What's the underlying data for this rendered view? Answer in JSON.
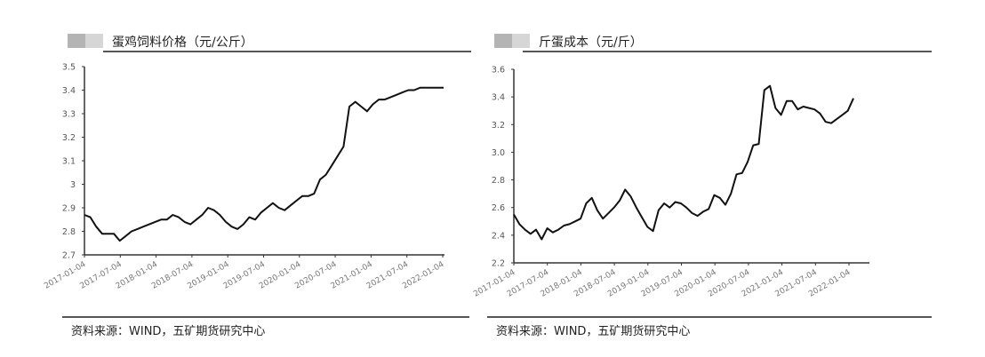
{
  "chart_data": [
    {
      "type": "line",
      "title": "蛋鸡饲料价格（元/公斤）",
      "xlabel": "",
      "ylabel": "",
      "ylim": [
        2.7,
        3.5
      ],
      "yticks": [
        "2.7",
        "2.8",
        "2.9",
        "3",
        "3.1",
        "3.2",
        "3.3",
        "3.4",
        "3.5"
      ],
      "xticks": [
        "2017-01-04",
        "2017-07-04",
        "2018-01-04",
        "2018-07-04",
        "2019-01-04",
        "2019-07-04",
        "2020-01-04",
        "2020-07-04",
        "2021-01-04",
        "2021-07-04",
        "2022-01-04"
      ],
      "grid": false,
      "legend": null,
      "series": [
        {
          "name": "蛋鸡饲料价格",
          "x": [
            "2017-01",
            "2017-02",
            "2017-03",
            "2017-04",
            "2017-05",
            "2017-06",
            "2017-07",
            "2017-08",
            "2017-09",
            "2017-10",
            "2017-11",
            "2017-12",
            "2018-01",
            "2018-02",
            "2018-03",
            "2018-04",
            "2018-05",
            "2018-06",
            "2018-07",
            "2018-08",
            "2018-09",
            "2018-10",
            "2018-11",
            "2018-12",
            "2019-01",
            "2019-02",
            "2019-03",
            "2019-04",
            "2019-05",
            "2019-06",
            "2019-07",
            "2019-08",
            "2019-09",
            "2019-10",
            "2019-11",
            "2019-12",
            "2020-01",
            "2020-02",
            "2020-03",
            "2020-04",
            "2020-05",
            "2020-06",
            "2020-07",
            "2020-08",
            "2020-09",
            "2020-10",
            "2020-11",
            "2020-12",
            "2021-01",
            "2021-02",
            "2021-03",
            "2021-04",
            "2021-05",
            "2021-06",
            "2021-07",
            "2021-08",
            "2021-09",
            "2021-10",
            "2021-11",
            "2021-12",
            "2022-01",
            "2022-02"
          ],
          "values": [
            2.87,
            2.86,
            2.82,
            2.79,
            2.79,
            2.79,
            2.76,
            2.78,
            2.8,
            2.81,
            2.82,
            2.83,
            2.84,
            2.85,
            2.85,
            2.87,
            2.86,
            2.84,
            2.83,
            2.85,
            2.87,
            2.9,
            2.89,
            2.87,
            2.84,
            2.82,
            2.81,
            2.83,
            2.86,
            2.85,
            2.88,
            2.9,
            2.92,
            2.9,
            2.89,
            2.91,
            2.93,
            2.95,
            2.95,
            2.96,
            3.02,
            3.04,
            3.08,
            3.12,
            3.16,
            3.33,
            3.35,
            3.33,
            3.31,
            3.34,
            3.36,
            3.36,
            3.37,
            3.38,
            3.39,
            3.4,
            3.4,
            3.41,
            3.41,
            3.41,
            3.41,
            3.41
          ]
        }
      ]
    },
    {
      "type": "line",
      "title": "斤蛋成本（元/斤）",
      "xlabel": "",
      "ylabel": "",
      "ylim": [
        2.2,
        3.6
      ],
      "yticks": [
        "2.2",
        "2.4",
        "2.6",
        "2.8",
        "3.0",
        "3.2",
        "3.4",
        "3.6"
      ],
      "xticks": [
        "2017-01-04",
        "2017-07-04",
        "2018-01-04",
        "2018-07-04",
        "2019-01-04",
        "2019-07-04",
        "2020-01-04",
        "2020-07-04",
        "2021-01-04",
        "2021-07-04",
        "2022-01-04"
      ],
      "grid": false,
      "legend": null,
      "series": [
        {
          "name": "斤蛋成本",
          "x": [
            "2017-01",
            "2017-02",
            "2017-03",
            "2017-04",
            "2017-05",
            "2017-06",
            "2017-07",
            "2017-08",
            "2017-09",
            "2017-10",
            "2017-11",
            "2017-12",
            "2018-01",
            "2018-02",
            "2018-03",
            "2018-04",
            "2018-05",
            "2018-06",
            "2018-07",
            "2018-08",
            "2018-09",
            "2018-10",
            "2018-11",
            "2018-12",
            "2019-01",
            "2019-02",
            "2019-03",
            "2019-04",
            "2019-05",
            "2019-06",
            "2019-07",
            "2019-08",
            "2019-09",
            "2019-10",
            "2019-11",
            "2019-12",
            "2020-01",
            "2020-02",
            "2020-03",
            "2020-04",
            "2020-05",
            "2020-06",
            "2020-07",
            "2020-08",
            "2020-09",
            "2020-10",
            "2020-11",
            "2020-12",
            "2021-01",
            "2021-02",
            "2021-03",
            "2021-04",
            "2021-05",
            "2021-06",
            "2021-07",
            "2021-08",
            "2021-09",
            "2021-10",
            "2021-11",
            "2021-12",
            "2022-01",
            "2022-02"
          ],
          "values": [
            2.55,
            2.48,
            2.44,
            2.41,
            2.44,
            2.37,
            2.45,
            2.42,
            2.44,
            2.47,
            2.48,
            2.5,
            2.52,
            2.63,
            2.67,
            2.58,
            2.52,
            2.56,
            2.6,
            2.65,
            2.73,
            2.68,
            2.6,
            2.53,
            2.46,
            2.43,
            2.58,
            2.63,
            2.6,
            2.64,
            2.63,
            2.6,
            2.56,
            2.54,
            2.57,
            2.59,
            2.69,
            2.67,
            2.62,
            2.7,
            2.84,
            2.85,
            2.93,
            3.05,
            3.06,
            3.45,
            3.48,
            3.32,
            3.27,
            3.37,
            3.37,
            3.31,
            3.33,
            3.32,
            3.31,
            3.28,
            3.22,
            3.21,
            3.24,
            3.27,
            3.3,
            3.39
          ]
        }
      ]
    }
  ],
  "panels": [
    {
      "title": "蛋鸡饲料价格（元/公斤）",
      "source": "资料来源：WIND，五矿期货研究中心",
      "yticks": [
        "2.7",
        "2.8",
        "2.9",
        "3",
        "3.1",
        "3.2",
        "3.3",
        "3.4",
        "3.5"
      ],
      "xticks": [
        "2017-01-04",
        "2017-07-04",
        "2018-01-04",
        "2018-07-04",
        "2019-01-04",
        "2019-07-04",
        "2020-01-04",
        "2020-07-04",
        "2021-01-04",
        "2021-07-04",
        "2022-01-04"
      ]
    },
    {
      "title": "斤蛋成本（元/斤）",
      "source": "资料来源：WIND，五矿期货研究中心",
      "yticks": [
        "2.2",
        "2.4",
        "2.6",
        "2.8",
        "3.0",
        "3.2",
        "3.4",
        "3.6"
      ],
      "xticks": [
        "2017-01-04",
        "2017-07-04",
        "2018-01-04",
        "2018-07-04",
        "2019-01-04",
        "2019-07-04",
        "2020-01-04",
        "2020-07-04",
        "2021-01-04",
        "2021-07-04",
        "2022-01-04"
      ]
    }
  ],
  "colors": {
    "line": "#111111",
    "axis": "#333333",
    "divider": "#555555",
    "tag_dark": "#b4b4b4",
    "tag_light": "#d6d6d6"
  }
}
